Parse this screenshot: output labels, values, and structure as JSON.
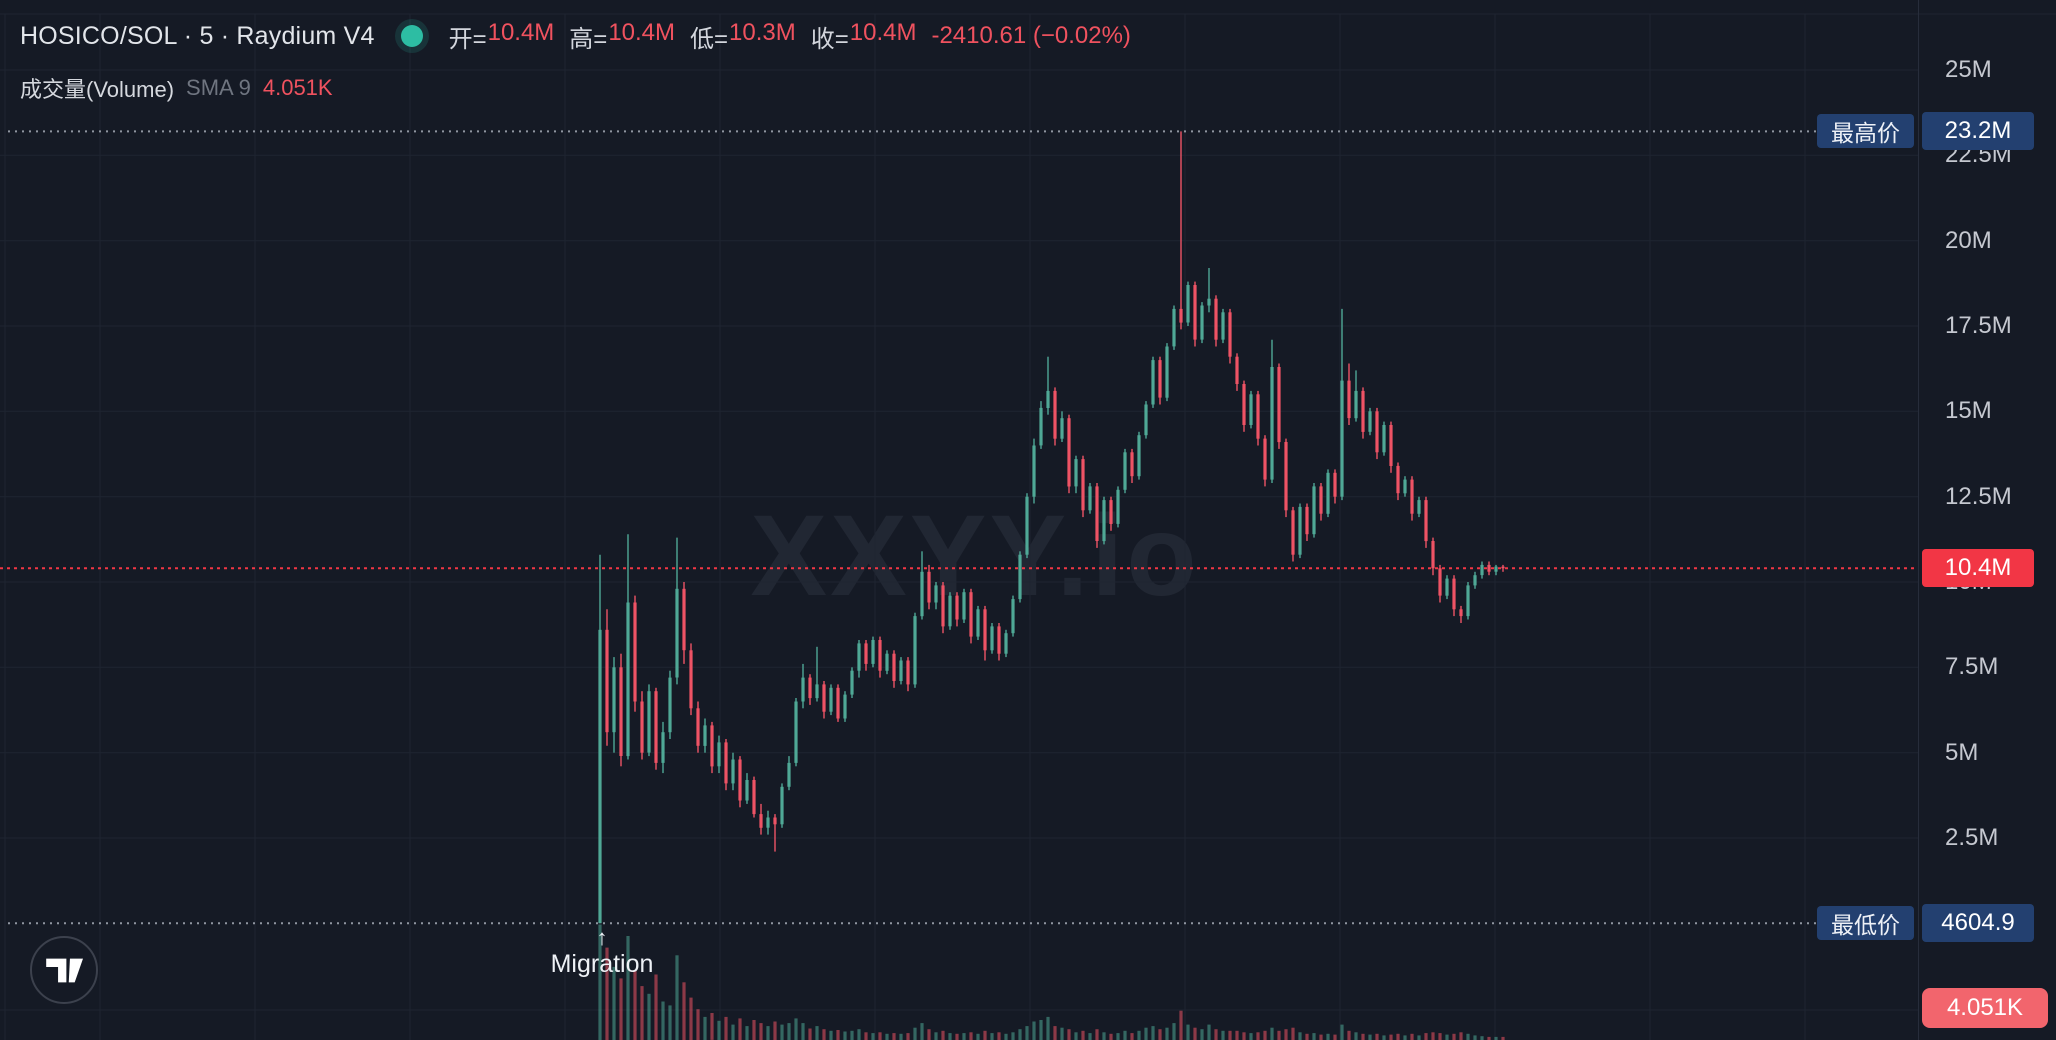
{
  "header": {
    "symbol_title": "HOSICO/SOL · 5 · Raydium V4",
    "ohlc": {
      "open_label": "开=",
      "open": "10.4M",
      "high_label": "高=",
      "high": "10.4M",
      "low_label": "低=",
      "low": "10.3M",
      "close_label": "收=",
      "close": "10.4M",
      "change": "-2410.61 (−0.02%)"
    },
    "indicator": {
      "name": "成交量(Volume)",
      "param": "SMA 9",
      "value": "4.051K"
    }
  },
  "watermark": "XXYY.io",
  "annotation": {
    "arrow": "↑",
    "label": "Migration"
  },
  "price_labels": {
    "high": {
      "label": "最高价",
      "value": "23.2M"
    },
    "low": {
      "label": "最低价",
      "value": "4604.9"
    },
    "current": {
      "value": "10.4M"
    },
    "volume_current": {
      "value": "4.051K"
    }
  },
  "colors": {
    "up": "#4fa896",
    "down": "#ee5365",
    "accent_red": "#f23645",
    "volume_badge_red": "#f2656d",
    "badge_blue": "#234070",
    "grid": "#1e2431",
    "dotted_gray": "#9096a1",
    "axis_text": "#c5c8d0",
    "background": "#151a25"
  },
  "chart_data": {
    "type": "candlestick",
    "symbol": "HOSICO/SOL",
    "interval": "5",
    "venue": "Raydium V4",
    "title": "HOSICO/SOL · 5 · Raydium V4",
    "unit": "M",
    "volume_unit": "K",
    "legend_position": "top-left",
    "grid": true,
    "y_axis": {
      "ticks": [
        {
          "label": "25M",
          "value": 25
        },
        {
          "label": "22.5M",
          "value": 22.5
        },
        {
          "label": "20M",
          "value": 20
        },
        {
          "label": "17.5M",
          "value": 17.5
        },
        {
          "label": "15M",
          "value": 15
        },
        {
          "label": "12.5M",
          "value": 12.5
        },
        {
          "label": "10M",
          "value": 10
        },
        {
          "label": "7.5M",
          "value": 7.5
        },
        {
          "label": "5M",
          "value": 5
        },
        {
          "label": "2.5M",
          "value": 2.5
        }
      ],
      "visible_range": [
        0,
        27
      ]
    },
    "key_levels": {
      "highest": 23.2,
      "highest_label": "23.2M",
      "lowest": 0.0046,
      "lowest_label": "4604.9",
      "last": 10.4,
      "last_label": "10.4M",
      "last_volume_k": 4.051,
      "last_volume_label": "4.051K"
    },
    "session_ohlc": {
      "open": 10.4,
      "high": 10.4,
      "low": 10.3,
      "close": 10.4,
      "change": -2410.61,
      "change_pct": -0.02
    },
    "annotation": {
      "label": "Migration",
      "candle_index": 0
    },
    "candles_format": [
      "open",
      "high",
      "low",
      "close",
      "volume_k"
    ],
    "candles": [
      [
        0.005,
        10.8,
        0.0046,
        8.6,
        150
      ],
      [
        8.6,
        9.2,
        5.2,
        5.6,
        120
      ],
      [
        5.6,
        7.8,
        5.0,
        7.5,
        95
      ],
      [
        7.5,
        7.9,
        4.6,
        4.9,
        80
      ],
      [
        4.9,
        11.4,
        4.8,
        9.4,
        135
      ],
      [
        9.4,
        9.6,
        6.2,
        6.5,
        90
      ],
      [
        6.5,
        6.8,
        4.8,
        5.0,
        70
      ],
      [
        5.0,
        7.0,
        4.9,
        6.8,
        60
      ],
      [
        6.8,
        6.9,
        4.5,
        4.7,
        85
      ],
      [
        4.7,
        5.9,
        4.4,
        5.6,
        50
      ],
      [
        5.6,
        7.4,
        5.4,
        7.2,
        45
      ],
      [
        7.2,
        11.3,
        7.0,
        9.8,
        110
      ],
      [
        9.8,
        10.0,
        7.6,
        8.0,
        75
      ],
      [
        8.0,
        8.2,
        6.1,
        6.3,
        55
      ],
      [
        6.3,
        6.5,
        5.0,
        5.2,
        40
      ],
      [
        5.2,
        6.0,
        5.0,
        5.8,
        30
      ],
      [
        5.8,
        5.9,
        4.4,
        4.6,
        35
      ],
      [
        4.6,
        5.5,
        4.4,
        5.3,
        25
      ],
      [
        5.3,
        5.4,
        3.9,
        4.1,
        30
      ],
      [
        4.1,
        5.0,
        3.9,
        4.8,
        20
      ],
      [
        4.8,
        4.9,
        3.4,
        3.6,
        28
      ],
      [
        3.6,
        4.4,
        3.5,
        4.2,
        18
      ],
      [
        4.2,
        4.3,
        3.1,
        3.2,
        26
      ],
      [
        3.2,
        3.5,
        2.6,
        2.8,
        22
      ],
      [
        2.8,
        3.3,
        2.6,
        3.1,
        18
      ],
      [
        3.1,
        3.2,
        2.1,
        2.9,
        24
      ],
      [
        2.9,
        4.1,
        2.8,
        4.0,
        20
      ],
      [
        4.0,
        4.9,
        3.9,
        4.7,
        22
      ],
      [
        4.7,
        6.6,
        4.6,
        6.5,
        28
      ],
      [
        6.5,
        7.6,
        6.3,
        7.2,
        22
      ],
      [
        7.2,
        7.3,
        6.4,
        6.6,
        15
      ],
      [
        6.6,
        8.1,
        6.5,
        7.0,
        18
      ],
      [
        7.0,
        7.1,
        6.0,
        6.2,
        14
      ],
      [
        6.2,
        7.0,
        6.1,
        6.9,
        12
      ],
      [
        6.9,
        7.0,
        5.9,
        6.0,
        13
      ],
      [
        6.0,
        6.8,
        5.9,
        6.7,
        11
      ],
      [
        6.7,
        7.5,
        6.6,
        7.4,
        12
      ],
      [
        7.4,
        8.3,
        7.2,
        8.2,
        14
      ],
      [
        8.2,
        8.3,
        7.4,
        7.6,
        10
      ],
      [
        7.6,
        8.4,
        7.5,
        8.3,
        9
      ],
      [
        8.3,
        8.4,
        7.2,
        7.4,
        10
      ],
      [
        7.4,
        8.0,
        7.3,
        7.9,
        8
      ],
      [
        7.9,
        8.0,
        6.9,
        7.1,
        9
      ],
      [
        7.1,
        7.8,
        7.0,
        7.7,
        8
      ],
      [
        7.7,
        7.8,
        6.8,
        7.0,
        9
      ],
      [
        7.0,
        9.1,
        6.9,
        9.0,
        16
      ],
      [
        9.0,
        10.9,
        8.9,
        10.3,
        22
      ],
      [
        10.3,
        10.5,
        9.2,
        9.4,
        14
      ],
      [
        9.4,
        10.0,
        9.2,
        9.9,
        10
      ],
      [
        9.9,
        10.0,
        8.5,
        8.7,
        12
      ],
      [
        8.7,
        9.7,
        8.6,
        9.6,
        9
      ],
      [
        9.6,
        9.7,
        8.7,
        8.9,
        8
      ],
      [
        8.9,
        9.8,
        8.8,
        9.7,
        9
      ],
      [
        9.7,
        9.8,
        8.2,
        8.4,
        10
      ],
      [
        8.4,
        9.3,
        8.3,
        9.2,
        8
      ],
      [
        9.2,
        9.3,
        7.7,
        8.0,
        12
      ],
      [
        8.0,
        8.8,
        7.9,
        8.7,
        9
      ],
      [
        8.7,
        8.8,
        7.7,
        7.9,
        10
      ],
      [
        7.9,
        8.6,
        7.8,
        8.5,
        8
      ],
      [
        8.5,
        9.6,
        8.4,
        9.5,
        10
      ],
      [
        9.5,
        10.9,
        9.4,
        10.8,
        14
      ],
      [
        10.8,
        12.6,
        10.7,
        12.5,
        18
      ],
      [
        12.5,
        14.2,
        12.3,
        14.0,
        24
      ],
      [
        14.0,
        15.3,
        13.9,
        15.1,
        26
      ],
      [
        15.1,
        16.6,
        14.9,
        15.6,
        30
      ],
      [
        15.6,
        15.7,
        14.0,
        14.2,
        18
      ],
      [
        14.2,
        15.0,
        14.1,
        14.8,
        16
      ],
      [
        14.8,
        14.9,
        12.6,
        12.8,
        14
      ],
      [
        12.8,
        13.7,
        12.6,
        13.6,
        10
      ],
      [
        13.6,
        13.7,
        11.9,
        12.1,
        12
      ],
      [
        12.1,
        12.9,
        12.0,
        12.8,
        9
      ],
      [
        12.8,
        12.9,
        11.0,
        11.2,
        14
      ],
      [
        11.2,
        12.5,
        11.1,
        12.4,
        10
      ],
      [
        12.4,
        12.5,
        11.5,
        11.7,
        8
      ],
      [
        11.7,
        12.8,
        11.6,
        12.7,
        9
      ],
      [
        12.7,
        13.9,
        12.6,
        13.8,
        12
      ],
      [
        13.8,
        13.9,
        12.9,
        13.1,
        9
      ],
      [
        13.1,
        14.4,
        13.0,
        14.3,
        12
      ],
      [
        14.3,
        15.3,
        14.2,
        15.2,
        16
      ],
      [
        15.2,
        16.6,
        15.1,
        16.5,
        18
      ],
      [
        16.5,
        16.6,
        15.2,
        15.4,
        14
      ],
      [
        15.4,
        17.0,
        15.3,
        16.9,
        16
      ],
      [
        16.9,
        18.1,
        16.8,
        18.0,
        22
      ],
      [
        18.0,
        23.2,
        17.4,
        17.6,
        38
      ],
      [
        17.6,
        18.8,
        17.5,
        18.7,
        20
      ],
      [
        18.7,
        18.8,
        16.9,
        17.1,
        16
      ],
      [
        17.1,
        18.2,
        17.0,
        18.1,
        14
      ],
      [
        18.1,
        19.2,
        17.9,
        18.3,
        20
      ],
      [
        18.3,
        18.4,
        16.9,
        17.1,
        14
      ],
      [
        17.1,
        18.0,
        17.0,
        17.9,
        12
      ],
      [
        17.9,
        18.0,
        16.4,
        16.6,
        12
      ],
      [
        16.6,
        16.7,
        15.6,
        15.8,
        12
      ],
      [
        15.8,
        15.9,
        14.4,
        14.6,
        10
      ],
      [
        14.6,
        15.6,
        14.5,
        15.5,
        9
      ],
      [
        15.5,
        15.6,
        14.0,
        14.2,
        10
      ],
      [
        14.2,
        14.3,
        12.8,
        13.0,
        12
      ],
      [
        13.0,
        17.1,
        12.9,
        16.3,
        16
      ],
      [
        16.3,
        16.4,
        13.9,
        14.1,
        12
      ],
      [
        14.1,
        14.2,
        11.9,
        12.1,
        14
      ],
      [
        12.1,
        12.2,
        10.6,
        10.8,
        16
      ],
      [
        10.8,
        12.3,
        10.7,
        12.2,
        10
      ],
      [
        12.2,
        12.3,
        11.2,
        11.4,
        8
      ],
      [
        11.4,
        12.9,
        11.3,
        12.8,
        9
      ],
      [
        12.8,
        12.9,
        11.8,
        12.0,
        7
      ],
      [
        12.0,
        13.3,
        11.9,
        13.2,
        8
      ],
      [
        13.2,
        13.3,
        12.3,
        12.5,
        7
      ],
      [
        12.5,
        18.0,
        12.4,
        15.9,
        20
      ],
      [
        15.9,
        16.4,
        14.6,
        14.8,
        12
      ],
      [
        14.8,
        16.2,
        14.7,
        15.6,
        10
      ],
      [
        15.6,
        15.7,
        14.2,
        14.4,
        8
      ],
      [
        14.4,
        15.1,
        14.3,
        15.0,
        7
      ],
      [
        15.0,
        15.1,
        13.6,
        13.8,
        8
      ],
      [
        13.8,
        14.7,
        13.7,
        14.6,
        6
      ],
      [
        14.6,
        14.7,
        13.2,
        13.4,
        7
      ],
      [
        13.4,
        13.5,
        12.4,
        12.6,
        8
      ],
      [
        12.6,
        13.1,
        12.5,
        13.0,
        6
      ],
      [
        13.0,
        13.1,
        11.8,
        12.0,
        8
      ],
      [
        12.0,
        12.5,
        11.9,
        12.4,
        6
      ],
      [
        12.4,
        12.5,
        11.0,
        11.2,
        9
      ],
      [
        11.2,
        11.3,
        10.2,
        10.4,
        10
      ],
      [
        10.4,
        10.5,
        9.4,
        9.6,
        9
      ],
      [
        9.6,
        10.2,
        9.5,
        10.1,
        7
      ],
      [
        10.1,
        10.2,
        9.0,
        9.2,
        8
      ],
      [
        9.2,
        9.3,
        8.8,
        9.0,
        10
      ],
      [
        9.0,
        10.0,
        8.9,
        9.9,
        8
      ],
      [
        9.9,
        10.3,
        9.8,
        10.2,
        6
      ],
      [
        10.2,
        10.6,
        10.1,
        10.5,
        5
      ],
      [
        10.5,
        10.6,
        10.2,
        10.3,
        4
      ],
      [
        10.3,
        10.5,
        10.2,
        10.45,
        4
      ],
      [
        10.45,
        10.5,
        10.3,
        10.4,
        4.051
      ]
    ]
  }
}
